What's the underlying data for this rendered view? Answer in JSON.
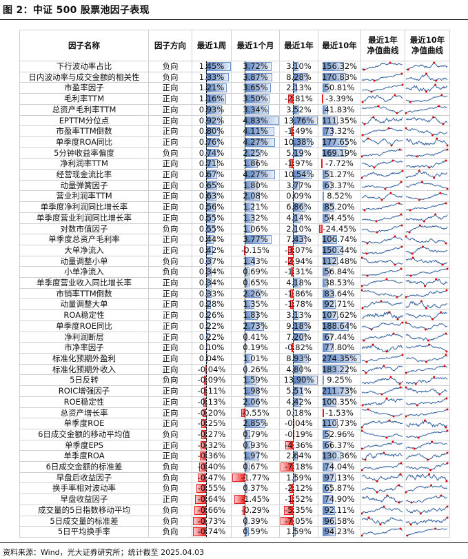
{
  "title": "图 2：中证 500 股票池因子表现",
  "footer": "资料来源：Wind，光大证券研究所；统计截至 2025.04.03",
  "colors": {
    "positive_bar": "#5b85c4",
    "negative_bar": "#f42a2a",
    "sparkline": "#2f5e9e",
    "marker": "#e00000"
  },
  "chart_data": {
    "type": "table",
    "columns": [
      "因子名称",
      "因子方向",
      "最近1周",
      "最近1个月",
      "最近1年",
      "最近10年",
      "最近1年净值曲线",
      "最近10年净值曲线"
    ],
    "rows": [
      [
        "下行波动率占比",
        "负向",
        "1.45%",
        "3.72%",
        "3.10%",
        "156.32%"
      ],
      [
        "日内波动率与成交金额的相关性",
        "负向",
        "1.33%",
        "3.87%",
        "8.28%",
        "170.83%"
      ],
      [
        "市盈率因子",
        "正向",
        "1.21%",
        "3.65%",
        "2.13%",
        "50.81%"
      ],
      [
        "毛利率TTM",
        "正向",
        "1.16%",
        "3.50%",
        "-2.81%",
        "-3.39%"
      ],
      [
        "总资产毛利率TTM",
        "正向",
        "0.93%",
        "3.34%",
        "3.52%",
        "41.83%"
      ],
      [
        "EPTTM分位点",
        "正向",
        "0.92%",
        "4.83%",
        "13.76%",
        "111.35%"
      ],
      [
        "市盈率TTM倒数",
        "正向",
        "0.80%",
        "4.11%",
        "-1.49%",
        "73.32%"
      ],
      [
        "单季度ROA同比",
        "正向",
        "0.76%",
        "4.27%",
        "10.38%",
        "177.65%"
      ],
      [
        "5分钟收益率偏度",
        "负向",
        "0.74%",
        "2.25%",
        "5.19%",
        "169.19%"
      ],
      [
        "净利润率TTM",
        "正向",
        "0.71%",
        "1.86%",
        "-1.97%",
        "-7.72%"
      ],
      [
        "经营现金流比率",
        "正向",
        "0.67%",
        "4.27%",
        "10.54%",
        "51.27%"
      ],
      [
        "动量弹簧因子",
        "正向",
        "0.65%",
        "1.80%",
        "3.77%",
        "63.37%"
      ],
      [
        "营业利润率TTM",
        "正向",
        "0.63%",
        "2.08%",
        "0.09%",
        "8.52%"
      ],
      [
        "单季度净利润同比增长率",
        "正向",
        "0.56%",
        "1.21%",
        "6.86%",
        "85.20%"
      ],
      [
        "单季度营业利润同比增长率",
        "正向",
        "0.55%",
        "1.32%",
        "4.14%",
        "54.45%"
      ],
      [
        "对数市值因子",
        "负向",
        "0.55%",
        "1.06%",
        "2.10%",
        "-24.45%"
      ],
      [
        "单季度总资产毛利率",
        "正向",
        "0.44%",
        "3.77%",
        "7.43%",
        "106.74%"
      ],
      [
        "大单净流入",
        "正向",
        "0.42%",
        "-0.15%",
        "-3.07%",
        "150.44%"
      ],
      [
        "动量调整小单",
        "负向",
        "0.37%",
        "1.43%",
        "-2.94%",
        "112.48%"
      ],
      [
        "小单净流入",
        "负向",
        "0.34%",
        "0.69%",
        "-1.31%",
        "56.84%"
      ],
      [
        "单季度营业收入同比增长率",
        "正向",
        "0.34%",
        "0.65%",
        "4.18%",
        "38.53%"
      ],
      [
        "市销率TTM倒数",
        "正向",
        "0.33%",
        "2.26%",
        "-1.86%",
        "83.64%"
      ],
      [
        "动量调整大单",
        "正向",
        "0.28%",
        "1.35%",
        "-1.78%",
        "92.71%"
      ],
      [
        "ROA稳定性",
        "正向",
        "0.26%",
        "1.83%",
        "3.13%",
        "107.62%"
      ],
      [
        "单季度ROE同比",
        "正向",
        "0.22%",
        "2.73%",
        "9.18%",
        "188.64%"
      ],
      [
        "净利润断层",
        "正向",
        "0.22%",
        "0.41%",
        "7.20%",
        "67.44%"
      ],
      [
        "市净率因子",
        "正向",
        "0.10%",
        "0.19%",
        "-0.82%",
        "77.80%"
      ],
      [
        "标准化预期外盈利",
        "正向",
        "0.04%",
        "1.01%",
        "8.93%",
        "274.35%"
      ],
      [
        "标准化预期外收入",
        "正向",
        "-0.04%",
        "0.26%",
        "4.80%",
        "183.22%"
      ],
      [
        "5日反转",
        "负向",
        "-0.09%",
        "1.59%",
        "13.90%",
        "9.25%"
      ],
      [
        "ROIC增强因子",
        "正向",
        "-0.11%",
        "1.98%",
        "5.51%",
        "211.73%"
      ],
      [
        "ROE稳定性",
        "正向",
        "-0.13%",
        "2.06%",
        "4.42%",
        "100.35%"
      ],
      [
        "总资产增长率",
        "正向",
        "-0.20%",
        "-0.55%",
        "0.18%",
        "-1.53%"
      ],
      [
        "单季度ROE",
        "正向",
        "-0.25%",
        "2.85%",
        "-0.04%",
        "110.73%"
      ],
      [
        "6日成交金额的移动平均值",
        "负向",
        "-0.27%",
        "0.79%",
        "-0.19%",
        "52.96%"
      ],
      [
        "单季度EPS",
        "正向",
        "-0.32%",
        "0.93%",
        "-4.36%",
        "66.37%"
      ],
      [
        "单季度ROA",
        "正向",
        "-0.36%",
        "1.97%",
        "2.64%",
        "130.36%"
      ],
      [
        "6日成交金额的标准差",
        "负向",
        "-0.40%",
        "0.67%",
        "-7.18%",
        "74.04%"
      ],
      [
        "早盘后收益因子",
        "负向",
        "-0.47%",
        "-1.77%",
        "1.59%",
        "97.13%"
      ],
      [
        "换手率相对波动率",
        "负向",
        "-0.55%",
        "0.37%",
        "-2.12%",
        "65.87%"
      ],
      [
        "早盘收益因子",
        "正向",
        "-0.64%",
        "-1.45%",
        "-1.52%",
        "74.90%"
      ],
      [
        "成交量的5日指数移动平均",
        "负向",
        "-0.66%",
        "-0.29%",
        "-5.35%",
        "92.11%"
      ],
      [
        "5日成交量的标准差",
        "负向",
        "-0.73%",
        "0.39%",
        "-7.05%",
        "96.58%"
      ],
      [
        "5日平均换手率",
        "负向",
        "-0.74%",
        "0.59%",
        "1.59%",
        "94.23%"
      ]
    ]
  }
}
